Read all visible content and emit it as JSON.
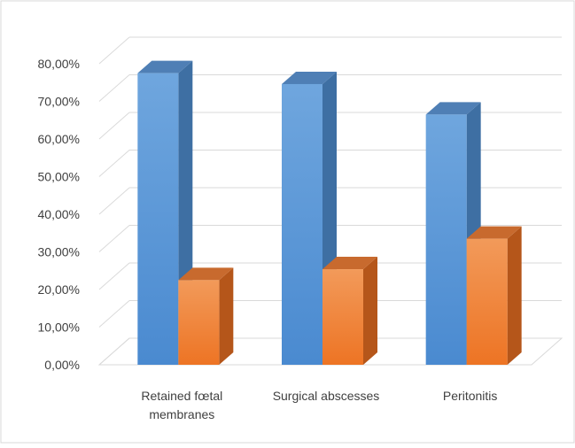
{
  "chart_data": {
    "type": "bar",
    "title": "",
    "xlabel": "",
    "ylabel": "",
    "ylim": [
      0,
      80
    ],
    "yticks": [
      "0,00%",
      "10,00%",
      "20,00%",
      "30,00%",
      "40,00%",
      "50,00%",
      "60,00%",
      "70,00%",
      "80,00%"
    ],
    "grid": true,
    "legend": "none",
    "categories": [
      [
        "Retained fœtal",
        "membranes"
      ],
      [
        "Surgical abscesses"
      ],
      [
        "Peritonitis"
      ]
    ],
    "series": [
      {
        "values": [
          77.5,
          74.6,
          66.5
        ],
        "color": "#5b9bd5"
      },
      {
        "values": [
          22.5,
          25.4,
          33.5
        ],
        "color": "#ed7d31"
      }
    ]
  }
}
